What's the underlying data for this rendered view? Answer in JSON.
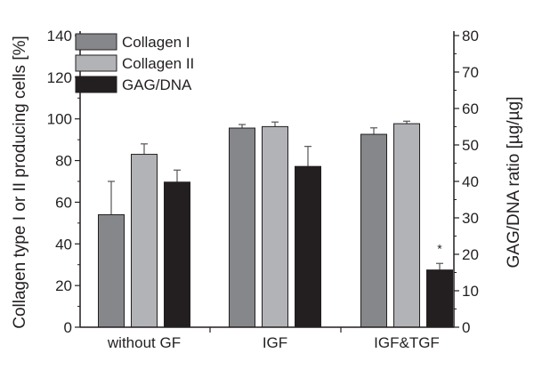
{
  "chart_data": {
    "type": "bar",
    "categories": [
      "without GF",
      "IGF",
      "IGF&TGF"
    ],
    "ylabel": "Collagen type I or II producing cells [%]",
    "ylabel_right": "GAG/DNA ratio [µg/µg]",
    "ylim": [
      0,
      140
    ],
    "ylim_right": [
      0,
      80
    ],
    "yticks": [
      0,
      20,
      40,
      60,
      80,
      100,
      120,
      140
    ],
    "yticks_right": [
      0,
      10,
      20,
      30,
      40,
      50,
      60,
      70,
      80
    ],
    "legend_position": "top-left",
    "series": [
      {
        "name": "Collagen I",
        "axis": "left",
        "color": "#86878b",
        "values": [
          54,
          95.6,
          92.6
        ],
        "errors": [
          16,
          1.7,
          3.1
        ]
      },
      {
        "name": "Collagen II",
        "axis": "left",
        "color": "#b2b3b6",
        "values": [
          83,
          96.3,
          97.7
        ],
        "errors": [
          5,
          2.2,
          1.2
        ]
      },
      {
        "name": "GAG/DNA",
        "axis": "right",
        "color": "#231f20",
        "values": [
          39.8,
          44.1,
          15.7
        ],
        "errors": [
          3.3,
          5.5,
          1.8
        ]
      }
    ],
    "annotations": [
      {
        "category": "IGF&TGF",
        "series": "GAG/DNA",
        "text": "*"
      }
    ]
  }
}
